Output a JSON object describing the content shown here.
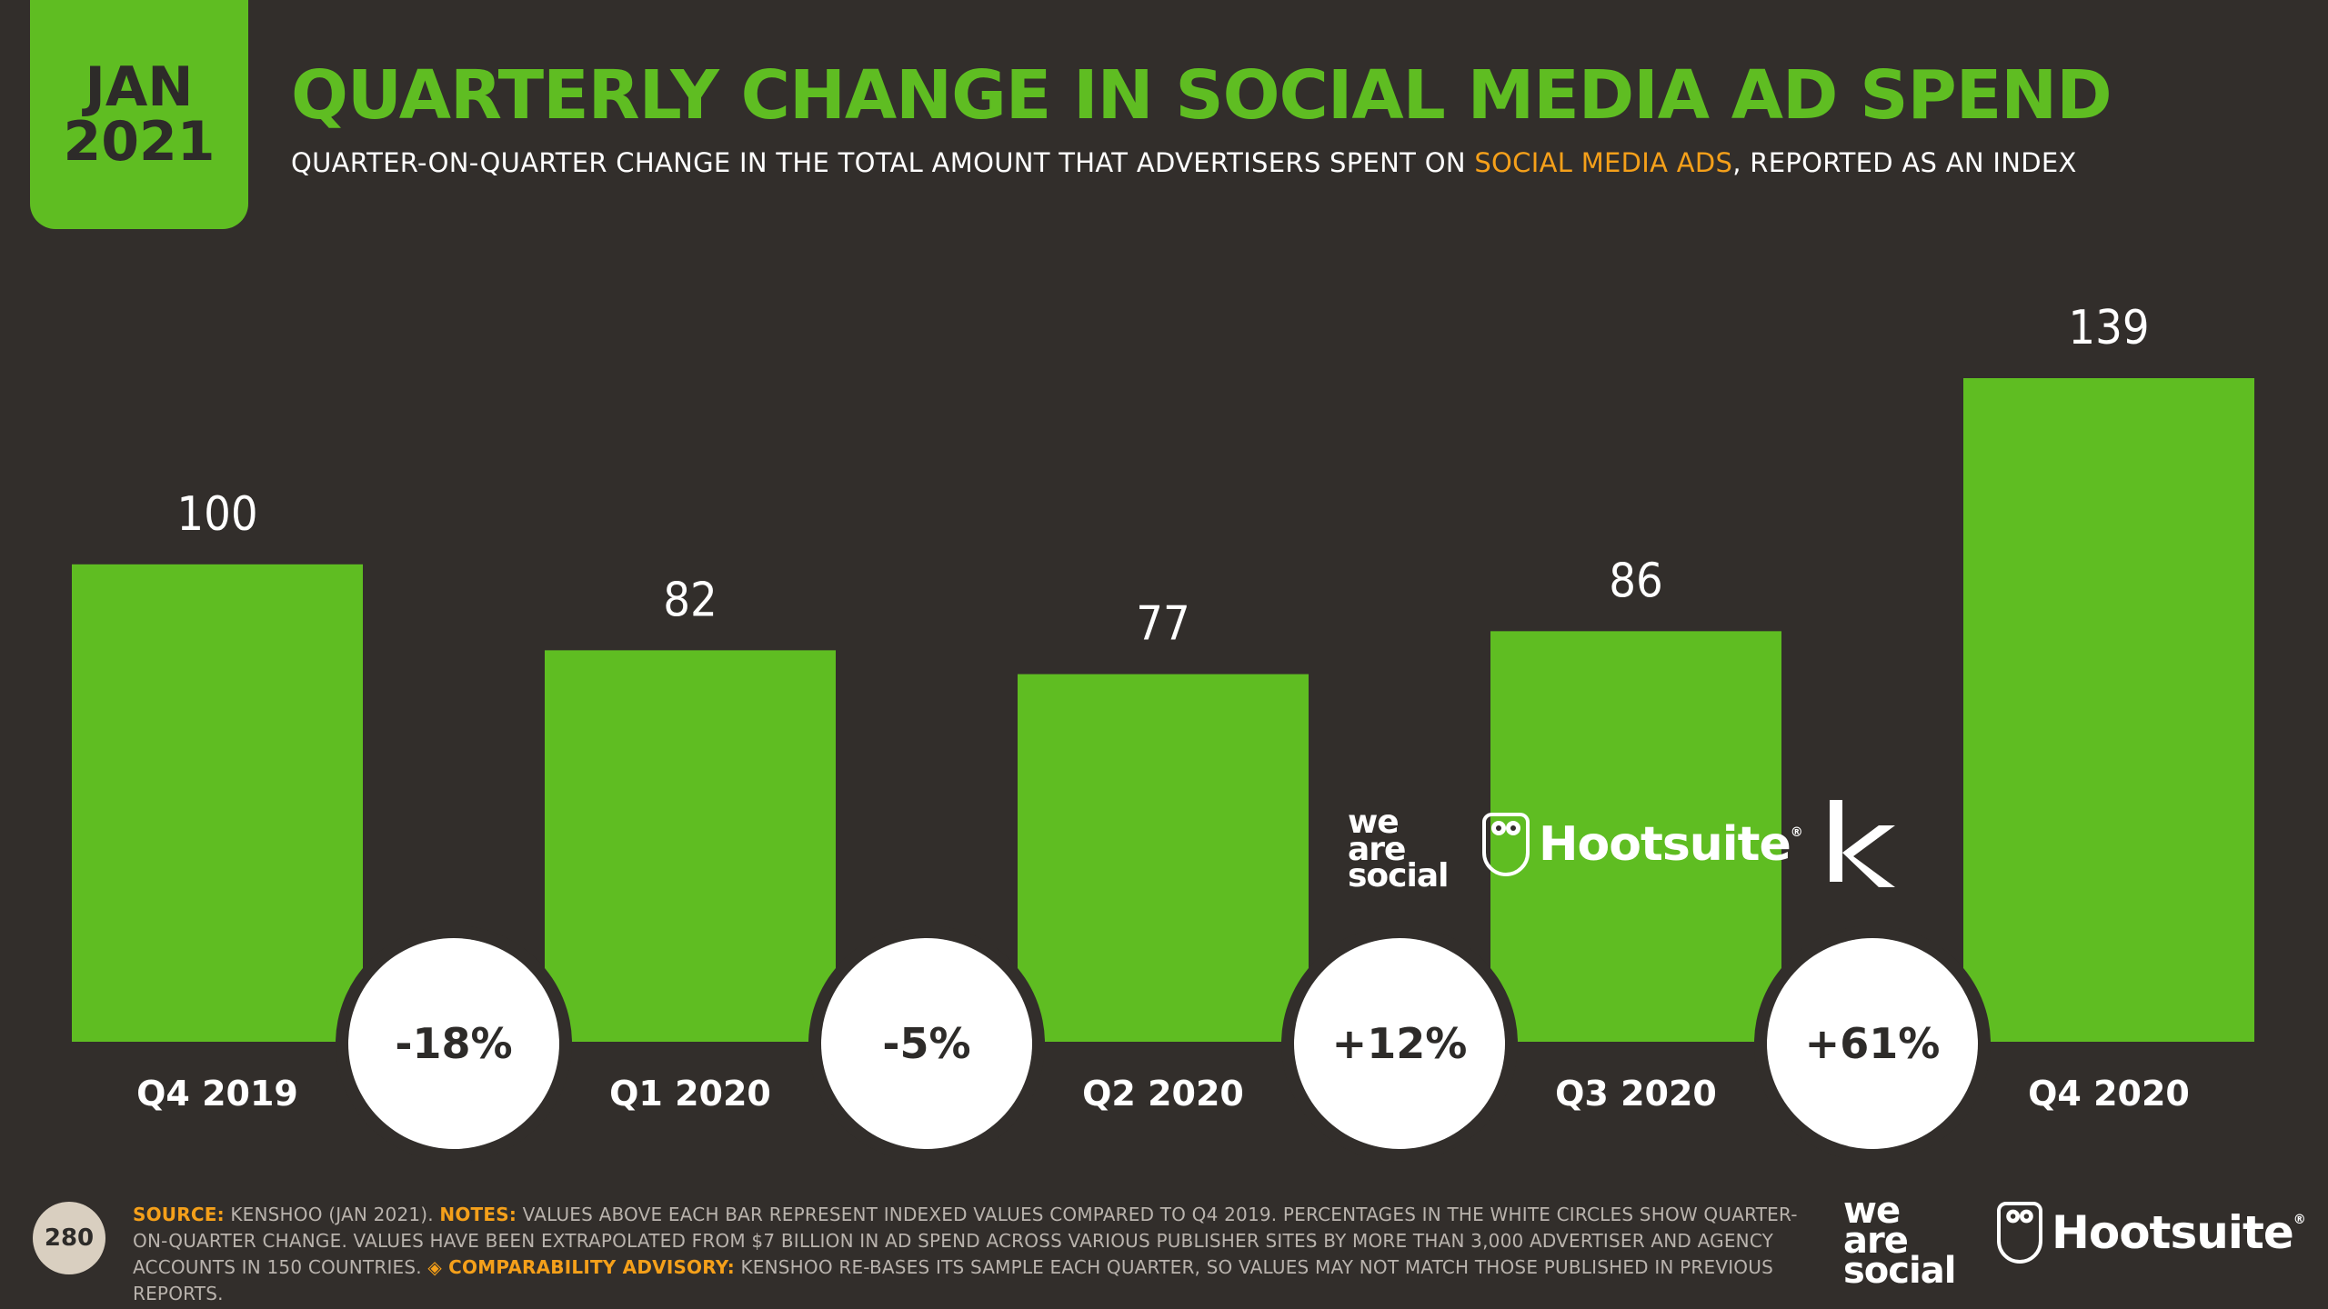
{
  "header": {
    "month": "JAN",
    "year": "2021",
    "title": "QUARTERLY CHANGE IN SOCIAL MEDIA AD SPEND",
    "subtitle_pre": "QUARTER-ON-QUARTER CHANGE IN THE TOTAL AMOUNT THAT ADVERTISERS SPENT ON ",
    "subtitle_highlight": "SOCIAL MEDIA ADS",
    "subtitle_post": ", REPORTED AS AN INDEX"
  },
  "colors": {
    "background": "#322e2b",
    "bar": "#5fbd22",
    "highlight": "#f5a01a",
    "circle": "#ffffff"
  },
  "chart_data": {
    "type": "bar",
    "categories": [
      "Q4 2019",
      "Q1 2020",
      "Q2 2020",
      "Q3 2020",
      "Q4 2020"
    ],
    "values": [
      100,
      82,
      77,
      86,
      139
    ],
    "changes": [
      "-18%",
      "-5%",
      "+12%",
      "+61%"
    ],
    "ylim": [
      0,
      139
    ],
    "grid": false,
    "title": "",
    "xlabel": "",
    "ylabel": ""
  },
  "logos": {
    "we_are_social": [
      "we",
      "are",
      "social"
    ],
    "hootsuite": "Hootsuite",
    "registered": "®",
    "kenshoo_icon": "kenshoo-k-icon"
  },
  "footer": {
    "page_number": "280",
    "source_label": "SOURCE:",
    "source_text": " KENSHOO (JAN 2021). ",
    "notes_label": "NOTES:",
    "notes_text": " VALUES ABOVE EACH BAR REPRESENT INDEXED VALUES COMPARED TO Q4 2019. PERCENTAGES IN THE WHITE CIRCLES SHOW QUARTER-ON-QUARTER CHANGE. VALUES HAVE BEEN EXTRAPOLATED FROM $7 BILLION IN AD SPEND ACROSS VARIOUS PUBLISHER SITES BY MORE THAN 3,000 ADVERTISER AND AGENCY ACCOUNTS IN 150 COUNTRIES. ",
    "advisory_label": "◈ COMPARABILITY ADVISORY:",
    "advisory_text": " KENSHOO RE-BASES ITS SAMPLE EACH QUARTER, SO VALUES MAY NOT MATCH THOSE PUBLISHED IN PREVIOUS REPORTS."
  }
}
